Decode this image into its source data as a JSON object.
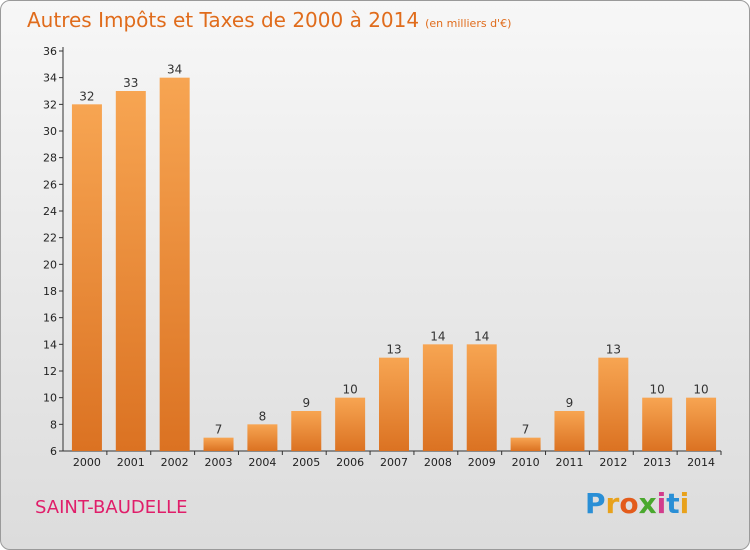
{
  "header": {
    "title": "Autres Impôts et Taxes de 2000 à 2014",
    "subtitle": "(en milliers d'€)"
  },
  "footer": {
    "commune": "SAINT-BAUDELLE",
    "logo": "Proxiti"
  },
  "colors": {
    "bar_top": "#f7a552",
    "bar_bottom": "#db7222",
    "title": "#e06c1c",
    "commune": "#e01e6a"
  },
  "chart_data": {
    "type": "bar",
    "title": "Autres Impôts et Taxes de 2000 à 2014",
    "subtitle": "(en milliers d'€)",
    "categories": [
      "2000",
      "2001",
      "2002",
      "2003",
      "2004",
      "2005",
      "2006",
      "2007",
      "2008",
      "2009",
      "2010",
      "2011",
      "2012",
      "2013",
      "2014"
    ],
    "values": [
      32,
      33,
      34,
      7,
      8,
      9,
      10,
      13,
      14,
      14,
      7,
      9,
      13,
      10,
      10
    ],
    "ylim": [
      6,
      36
    ],
    "yticks": [
      6,
      8,
      10,
      12,
      14,
      16,
      18,
      20,
      22,
      24,
      26,
      28,
      30,
      32,
      34,
      36
    ],
    "grid": false,
    "data_labels": true
  }
}
